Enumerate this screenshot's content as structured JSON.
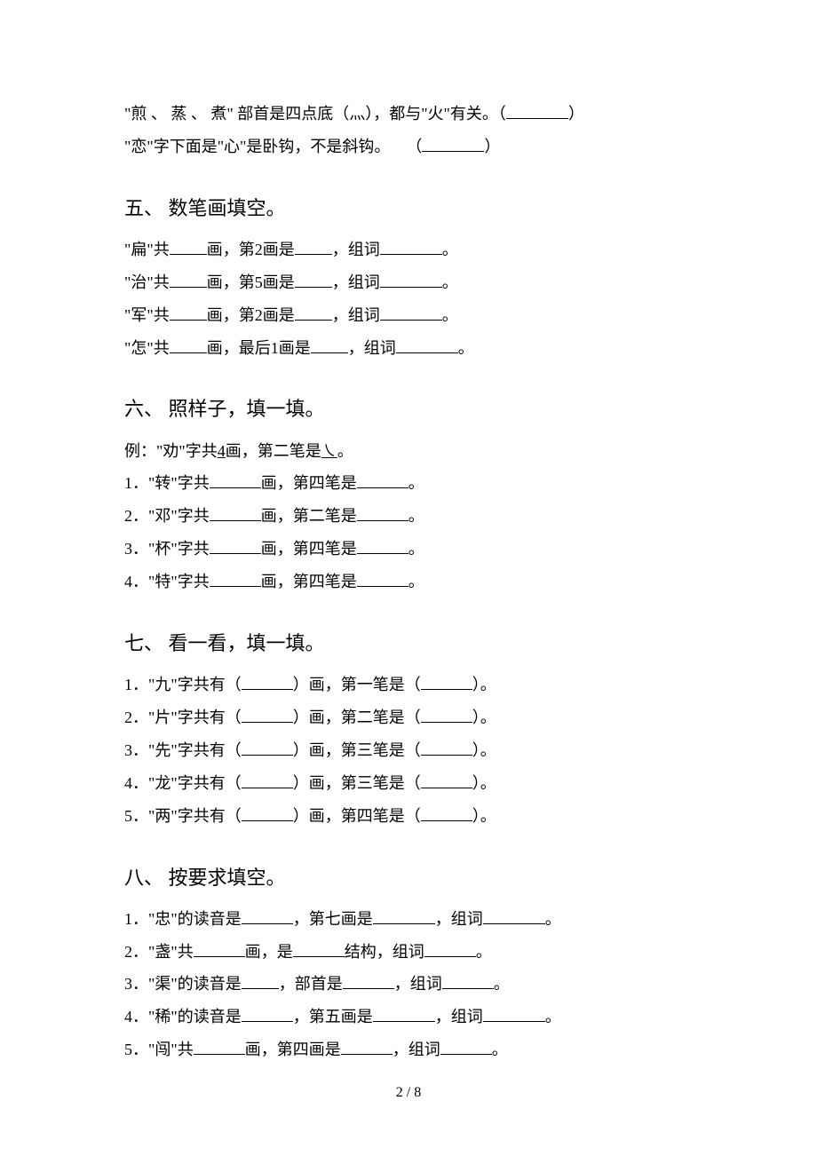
{
  "intro": {
    "l1_a": "\"煎 、 蒸 、 煮\" 部首是四点底（灬），都与\"火\"有关。（",
    "l1_b": "）",
    "l2_a": "\"恋\"字下面是\"心\"是卧钩，不是斜钩。　　（",
    "l2_b": "）"
  },
  "s5": {
    "title": "五、 数笔画填空。",
    "r1_a": "\"扁\"共",
    "r1_b": "画，第2画是",
    "r1_c": "，组词",
    "r1_d": "。",
    "r2_a": "\"治\"共",
    "r2_b": "画，第5画是",
    "r2_c": "，组词",
    "r2_d": "。",
    "r3_a": "\"军\"共",
    "r3_b": "画，第2画是",
    "r3_c": "，组词",
    "r3_d": "。",
    "r4_a": "\"怎\"共",
    "r4_b": "画，最后1画是",
    "r4_c": "，组词",
    "r4_d": "。"
  },
  "s6": {
    "title": "六、 照样子，填一填。",
    "ex_a": "例：\"劝\"字共",
    "ex_mid": "4",
    "ex_b": "画，第二笔是",
    "ex_sym": "㇏",
    "ex_c": "。",
    "r1_a": "1．\"转\"字共",
    "r1_b": "画，第四笔是",
    "r1_c": "。",
    "r2_a": "2．\"邓\"字共",
    "r2_b": "画，第二笔是",
    "r2_c": "。",
    "r3_a": "3．\"杯\"字共",
    "r3_b": "画，第四笔是",
    "r3_c": "。",
    "r4_a": "4．\"特\"字共",
    "r4_b": "画，第四笔是",
    "r4_c": "。"
  },
  "s7": {
    "title": "七、 看一看，填一填。",
    "r1_a": "1．\"九\"字共有（",
    "r1_b": "）画，第一笔是（",
    "r1_c": "）。",
    "r2_a": "2．\"片\"字共有（",
    "r2_b": "）画，第二笔是（",
    "r2_c": "）。",
    "r3_a": "3．\"先\"字共有（",
    "r3_b": "）画，第三笔是（",
    "r3_c": "）。",
    "r4_a": "4．\"龙\"字共有（",
    "r4_b": "）画，第三笔是（",
    "r4_c": "）。",
    "r5_a": "5．\"两\"字共有（",
    "r5_b": "）画，第四笔是（",
    "r5_c": "）。"
  },
  "s8": {
    "title": "八、 按要求填空。",
    "r1_a": "1．\"忠\"的读音是",
    "r1_b": "，第七画是",
    "r1_c": "，组词",
    "r1_d": "。",
    "r2_a": "2．\"盏\"共",
    "r2_b": "画，是",
    "r2_c": "结构，组词",
    "r2_d": "。",
    "r3_a": "3．\"渠\"的读音是",
    "r3_b": "，部首是",
    "r3_c": "，组词",
    "r3_d": "。",
    "r4_a": "4．\"稀\"的读音是",
    "r4_b": "，第五画是",
    "r4_c": "，组词",
    "r4_d": "。",
    "r5_a": "5．\"闯\"共",
    "r5_b": "画，第四画是",
    "r5_c": "，组词",
    "r5_d": "。"
  },
  "pagenum": "2 / 8"
}
